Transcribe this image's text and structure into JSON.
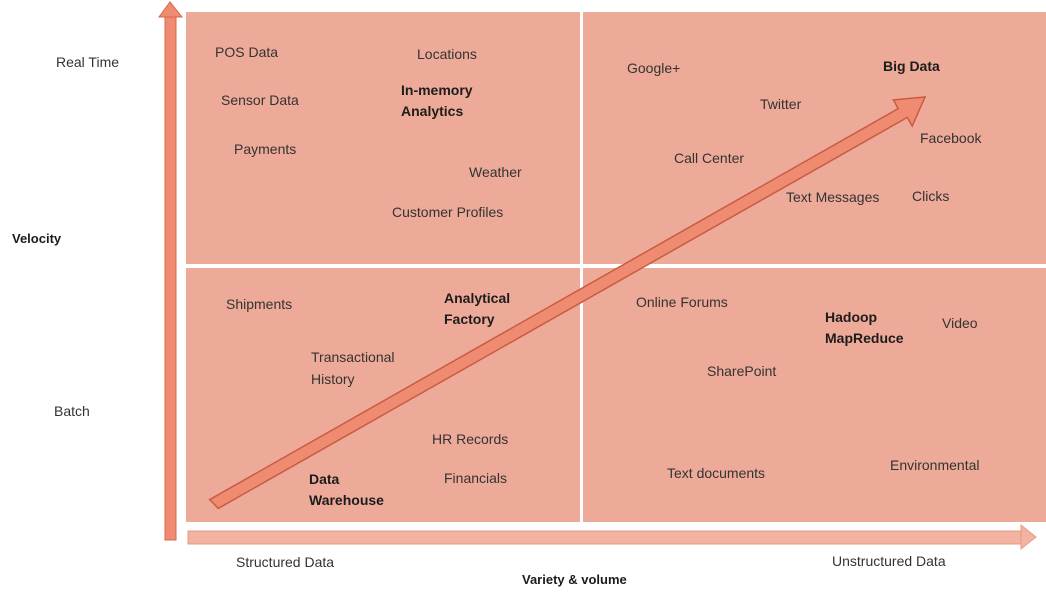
{
  "axes": {
    "y_title": "Velocity",
    "y_top": "Real Time",
    "y_bottom": "Batch",
    "x_title": "Variety & volume",
    "x_left": "Structured Data",
    "x_right": "Unstructured Data"
  },
  "quadrants": {
    "top_left": [
      "POS Data",
      "Locations",
      "Sensor Data",
      "In-memory",
      "Analytics",
      "Payments",
      "Weather",
      "Customer Profiles"
    ],
    "top_right": [
      "Google+",
      "Big Data",
      "Twitter",
      "Facebook",
      "Call Center",
      "Text Messages",
      "Clicks"
    ],
    "bottom_left": [
      "Shipments",
      "Analytical",
      "Factory",
      "Transactional",
      "History",
      "HR Records",
      "Data",
      "Warehouse",
      "Financials"
    ],
    "bottom_right": [
      "Online Forums",
      "Hadoop",
      "MapReduce",
      "Video",
      "SharePoint",
      "Text documents",
      "Environmental"
    ]
  },
  "colors": {
    "quadrant_fill": "#eeaa98",
    "arrow_fill": "#ef8b70",
    "arrow_stroke": "#c95b44",
    "axis_arrow": "#ef7f62"
  }
}
